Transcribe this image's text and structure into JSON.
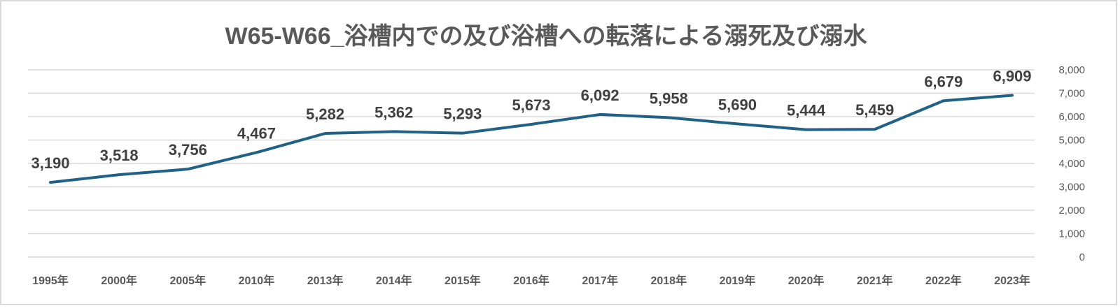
{
  "chart_data": {
    "type": "line",
    "title": "W65-W66_浴槽内での及び浴槽への転落による溺死及び溺水",
    "xlabel": "",
    "ylabel": "",
    "categories": [
      "1995年",
      "2000年",
      "2005年",
      "2010年",
      "2013年",
      "2014年",
      "2015年",
      "2016年",
      "2017年",
      "2018年",
      "2019年",
      "2020年",
      "2021年",
      "2022年",
      "2023年"
    ],
    "series": [
      {
        "name": "W65-W66",
        "values": [
          3190,
          3518,
          3756,
          4467,
          5282,
          5362,
          5293,
          5673,
          6092,
          5958,
          5690,
          5444,
          5459,
          6679,
          6909
        ],
        "labels": [
          "3,190",
          "3,518",
          "3,756",
          "4,467",
          "5,282",
          "5,362",
          "5,293",
          "5,673",
          "6,092",
          "5,958",
          "5,690",
          "5,444",
          "5,459",
          "6,679",
          "6,909"
        ],
        "color": "#1f6285"
      }
    ],
    "ylim": [
      0,
      8000
    ],
    "yticks": [
      0,
      1000,
      2000,
      3000,
      4000,
      5000,
      6000,
      7000,
      8000
    ],
    "ytick_labels": [
      "0",
      "1,000",
      "2,000",
      "3,000",
      "4,000",
      "5,000",
      "6,000",
      "7,000",
      "8,000"
    ],
    "y_axis_position": "right",
    "grid": true,
    "legend": "none",
    "data_labels": true
  }
}
